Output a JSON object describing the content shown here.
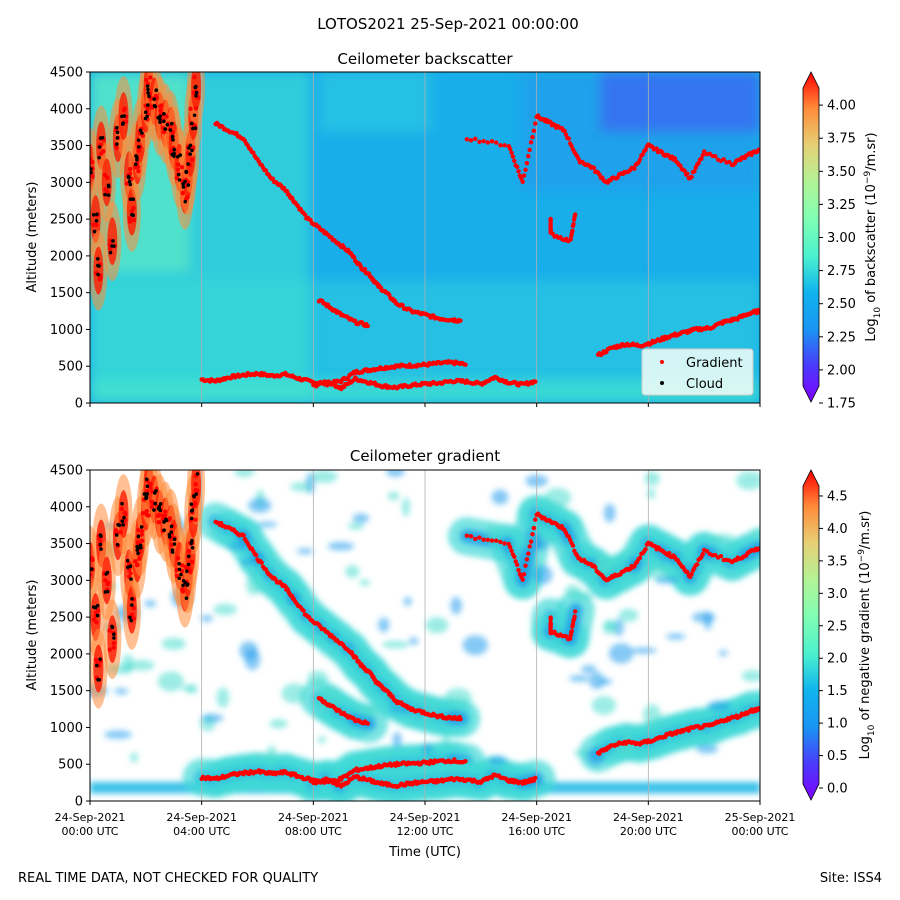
{
  "figure": {
    "suptitle": "LOTOS2021 25-Sep-2021 00:00:00",
    "footer_left": "REAL TIME DATA, NOT CHECKED FOR QUALITY",
    "footer_right": "Site: ISS4",
    "xlabel": "Time (UTC)"
  },
  "colormap": [
    "#7f00ff",
    "#4a3bfb",
    "#1996f3",
    "#10b4ee",
    "#4cf2ce",
    "#80feb3",
    "#b3f396",
    "#e6d076",
    "#ff8c3a",
    "#ff0000"
  ],
  "chart_data": [
    {
      "type": "heatmap",
      "title": "Ceilometer backscatter",
      "ylabel": "Altitude (meters)",
      "xlabel": "",
      "x_ticks": [
        {
          "line1": "24-Sep-2021",
          "line2": "00:00 UTC"
        },
        {
          "line1": "24-Sep-2021",
          "line2": "04:00 UTC"
        },
        {
          "line1": "24-Sep-2021",
          "line2": "08:00 UTC"
        },
        {
          "line1": "24-Sep-2021",
          "line2": "12:00 UTC"
        },
        {
          "line1": "24-Sep-2021",
          "line2": "16:00 UTC"
        },
        {
          "line1": "24-Sep-2021",
          "line2": "20:00 UTC"
        },
        {
          "line1": "25-Sep-2021",
          "line2": "00:00 UTC"
        }
      ],
      "xlim_hours": [
        0,
        24
      ],
      "ylim": [
        0,
        4500
      ],
      "y_ticks": [
        "0",
        "500",
        "1000",
        "1500",
        "2000",
        "2500",
        "3000",
        "3500",
        "4000",
        "4500"
      ],
      "colorbar": {
        "label_prefix": "Log",
        "label_sub": "10",
        "label_mid": " of backscatter (10",
        "label_sup": "−9",
        "label_end": "/m.sr)",
        "range": [
          1.75,
          4.25
        ],
        "ticks": [
          "1.75",
          "2.00",
          "2.25",
          "2.50",
          "2.75",
          "3.00",
          "3.25",
          "3.50",
          "3.75",
          "4.00"
        ]
      },
      "legend": {
        "placement": "lower-right",
        "entries": [
          {
            "label": "Gradient",
            "color": "#ff0000"
          },
          {
            "label": "Cloud",
            "color": "#000000"
          }
        ]
      },
      "gradient_layers": [
        {
          "name": "pbl_low",
          "points": [
            [
              4.0,
              320
            ],
            [
              4.5,
              300
            ],
            [
              5.0,
              350
            ],
            [
              5.5,
              380
            ],
            [
              6.0,
              400
            ],
            [
              6.5,
              370
            ],
            [
              7.0,
              390
            ],
            [
              7.5,
              330
            ],
            [
              8.0,
              280
            ],
            [
              8.5,
              260
            ],
            [
              9.0,
              300
            ],
            [
              9.5,
              420
            ],
            [
              10.0,
              450
            ],
            [
              10.5,
              480
            ],
            [
              11.0,
              500
            ],
            [
              11.5,
              510
            ],
            [
              12.0,
              520
            ],
            [
              12.5,
              540
            ],
            [
              13.0,
              550
            ],
            [
              13.5,
              520
            ]
          ]
        },
        {
          "name": "pbl_lower",
          "points": [
            [
              8.0,
              230
            ],
            [
              8.5,
              300
            ],
            [
              9.0,
              200
            ],
            [
              9.5,
              330
            ],
            [
              10.0,
              280
            ],
            [
              10.5,
              230
            ],
            [
              11.0,
              210
            ],
            [
              11.5,
              240
            ],
            [
              12.0,
              260
            ],
            [
              12.5,
              270
            ],
            [
              13.0,
              300
            ],
            [
              13.5,
              290
            ],
            [
              14.0,
              260
            ],
            [
              14.5,
              350
            ],
            [
              15.0,
              280
            ],
            [
              15.5,
              250
            ],
            [
              16.0,
              300
            ]
          ]
        },
        {
          "name": "residual",
          "points": [
            [
              4.5,
              3800
            ],
            [
              5.0,
              3700
            ],
            [
              5.5,
              3600
            ],
            [
              6.0,
              3300
            ],
            [
              6.5,
              3050
            ],
            [
              7.0,
              2900
            ],
            [
              7.3,
              2750
            ],
            [
              7.8,
              2500
            ],
            [
              8.3,
              2350
            ],
            [
              8.8,
              2200
            ],
            [
              9.3,
              2050
            ],
            [
              9.7,
              1850
            ],
            [
              10.0,
              1750
            ],
            [
              10.3,
              1600
            ],
            [
              10.6,
              1500
            ],
            [
              11.0,
              1350
            ],
            [
              11.5,
              1250
            ],
            [
              12.0,
              1200
            ],
            [
              12.5,
              1150
            ],
            [
              13.0,
              1130
            ],
            [
              13.3,
              1120
            ]
          ]
        },
        {
          "name": "residual2",
          "points": [
            [
              8.2,
              1400
            ],
            [
              8.6,
              1300
            ],
            [
              9.0,
              1200
            ],
            [
              9.5,
              1100
            ],
            [
              10.0,
              1050
            ]
          ]
        },
        {
          "name": "evening",
          "points": [
            [
              18.2,
              650
            ],
            [
              18.7,
              750
            ],
            [
              19.2,
              800
            ],
            [
              19.7,
              780
            ],
            [
              20.2,
              830
            ],
            [
              20.7,
              900
            ],
            [
              21.2,
              950
            ],
            [
              21.7,
              1000
            ],
            [
              22.2,
              1020
            ],
            [
              22.7,
              1100
            ],
            [
              23.2,
              1150
            ],
            [
              23.7,
              1230
            ],
            [
              24.0,
              1250
            ]
          ]
        },
        {
          "name": "upper",
          "points": [
            [
              13.5,
              3600
            ],
            [
              15.0,
              3500
            ],
            [
              15.5,
              3000
            ],
            [
              16.0,
              3900
            ],
            [
              16.5,
              3800
            ],
            [
              17.0,
              3700
            ],
            [
              17.5,
              3300
            ],
            [
              18.0,
              3200
            ],
            [
              18.5,
              3000
            ],
            [
              19.0,
              3100
            ],
            [
              19.5,
              3200
            ],
            [
              20.0,
              3500
            ],
            [
              20.5,
              3400
            ],
            [
              21.0,
              3300
            ],
            [
              21.5,
              3050
            ],
            [
              22.0,
              3400
            ],
            [
              23.0,
              3250
            ],
            [
              23.5,
              3350
            ],
            [
              24.0,
              3450
            ]
          ]
        },
        {
          "name": "mid",
          "points": [
            [
              16.5,
              2500
            ],
            [
              16.5,
              2300
            ],
            [
              17.2,
              2200
            ],
            [
              17.4,
              2600
            ]
          ]
        }
      ],
      "cloud_band": {
        "name": "morning_clouds",
        "points": [
          [
            0.0,
            3200
          ],
          [
            0.2,
            2500
          ],
          [
            0.3,
            1800
          ],
          [
            0.4,
            3500
          ],
          [
            0.6,
            3000
          ],
          [
            0.8,
            2200
          ],
          [
            1.0,
            3600
          ],
          [
            1.2,
            3900
          ],
          [
            1.4,
            3100
          ],
          [
            1.5,
            2600
          ],
          [
            1.7,
            3300
          ],
          [
            1.8,
            3600
          ],
          [
            2.0,
            4000
          ],
          [
            2.1,
            4300
          ],
          [
            2.3,
            4100
          ],
          [
            2.5,
            3900
          ],
          [
            2.7,
            3800
          ],
          [
            2.9,
            3700
          ],
          [
            3.0,
            3500
          ],
          [
            3.2,
            3200
          ],
          [
            3.4,
            2900
          ],
          [
            3.5,
            3100
          ],
          [
            3.6,
            3400
          ],
          [
            3.7,
            3900
          ],
          [
            3.8,
            4300
          ]
        ]
      }
    },
    {
      "type": "heatmap",
      "title": "Ceilometer gradient",
      "ylabel": "Altitude (meters)",
      "xlabel": "Time (UTC)",
      "x_ticks": [
        {
          "line1": "24-Sep-2021",
          "line2": "00:00 UTC"
        },
        {
          "line1": "24-Sep-2021",
          "line2": "04:00 UTC"
        },
        {
          "line1": "24-Sep-2021",
          "line2": "08:00 UTC"
        },
        {
          "line1": "24-Sep-2021",
          "line2": "12:00 UTC"
        },
        {
          "line1": "24-Sep-2021",
          "line2": "16:00 UTC"
        },
        {
          "line1": "24-Sep-2021",
          "line2": "20:00 UTC"
        },
        {
          "line1": "25-Sep-2021",
          "line2": "00:00 UTC"
        }
      ],
      "xlim_hours": [
        0,
        24
      ],
      "ylim": [
        0,
        4500
      ],
      "y_ticks": [
        "0",
        "500",
        "1000",
        "1500",
        "2000",
        "2500",
        "3000",
        "3500",
        "4000",
        "4500"
      ],
      "colorbar": {
        "label_prefix": "Log",
        "label_sub": "10",
        "label_mid": " of negative gradient (10",
        "label_sup": "−9",
        "label_end": "/m.sr)",
        "range": [
          -0.2,
          4.9
        ],
        "ticks": [
          "0.0",
          "0.5",
          "1.0",
          "1.5",
          "2.0",
          "2.5",
          "3.0",
          "3.5",
          "4.0",
          "4.5"
        ]
      }
    }
  ]
}
